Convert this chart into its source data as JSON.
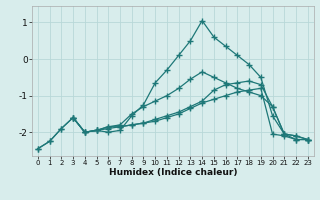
{
  "xlabel": "Humidex (Indice chaleur)",
  "background_color": "#d8edec",
  "line_color": "#1e7878",
  "grid_color": "#b8d8d8",
  "xlim": [
    -0.5,
    23.5
  ],
  "ylim": [
    -2.65,
    1.45
  ],
  "xticks": [
    0,
    1,
    2,
    3,
    4,
    5,
    6,
    7,
    8,
    9,
    10,
    11,
    12,
    13,
    14,
    15,
    16,
    17,
    18,
    19,
    20,
    21,
    22,
    23
  ],
  "yticks": [
    -2,
    -1,
    0,
    1
  ],
  "curves": [
    {
      "x": [
        0,
        1,
        2,
        3,
        4,
        5,
        6,
        7,
        8,
        9,
        10,
        11,
        12,
        13,
        14,
        15,
        16,
        17,
        18,
        19,
        20,
        21,
        22,
        23
      ],
      "y": [
        -2.45,
        -2.25,
        -1.9,
        -1.6,
        -2.0,
        -1.95,
        -1.9,
        -1.85,
        -1.8,
        -1.75,
        -1.7,
        -1.6,
        -1.5,
        -1.35,
        -1.2,
        -1.1,
        -1.0,
        -0.9,
        -0.85,
        -0.8,
        -2.05,
        -2.1,
        -2.2,
        -2.2
      ]
    },
    {
      "x": [
        0,
        1,
        2,
        3,
        4,
        5,
        6,
        7,
        8,
        9,
        10,
        11,
        12,
        13,
        14,
        15,
        16,
        17,
        18,
        19,
        20,
        21,
        22,
        23
      ],
      "y": [
        -2.45,
        -2.25,
        -1.9,
        -1.6,
        -2.0,
        -1.95,
        -2.0,
        -1.95,
        -1.55,
        -1.25,
        -0.65,
        -0.3,
        0.1,
        0.5,
        1.05,
        0.6,
        0.35,
        0.1,
        -0.15,
        -0.5,
        -1.55,
        -2.05,
        -2.2,
        -2.2
      ]
    },
    {
      "x": [
        3,
        4,
        5,
        6,
        7,
        8,
        9,
        10,
        11,
        12,
        13,
        14,
        15,
        16,
        17,
        18,
        19,
        20,
        21,
        22,
        23
      ],
      "y": [
        -1.6,
        -2.0,
        -1.95,
        -1.85,
        -1.8,
        -1.5,
        -1.3,
        -1.15,
        -1.0,
        -0.8,
        -0.55,
        -0.35,
        -0.5,
        -0.65,
        -0.8,
        -0.9,
        -1.0,
        -1.3,
        -2.05,
        -2.1,
        -2.2
      ]
    },
    {
      "x": [
        3,
        4,
        5,
        6,
        7,
        8,
        9,
        10,
        11,
        12,
        13,
        14,
        15,
        16,
        17,
        18,
        19,
        20,
        21,
        22,
        23
      ],
      "y": [
        -1.6,
        -2.0,
        -1.95,
        -1.85,
        -1.85,
        -1.8,
        -1.75,
        -1.65,
        -1.55,
        -1.45,
        -1.3,
        -1.15,
        -0.85,
        -0.7,
        -0.65,
        -0.6,
        -0.7,
        -1.3,
        -2.05,
        -2.1,
        -2.2
      ]
    }
  ]
}
